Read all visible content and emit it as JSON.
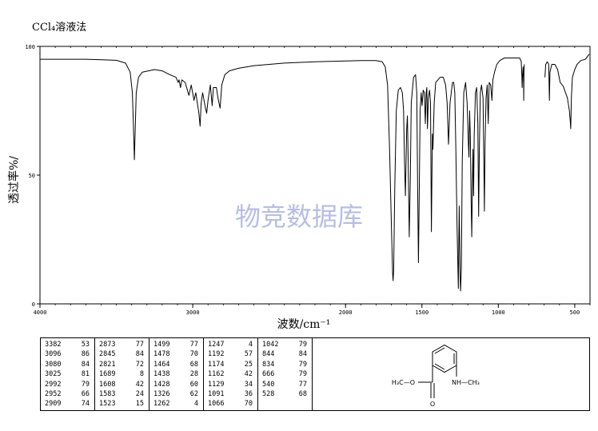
{
  "header": {
    "title": "CCl₄溶液法"
  },
  "watermark": "物竞数据库",
  "chart_data": {
    "type": "line",
    "xlabel": "波数/cm⁻¹",
    "ylabel": "透过率%/",
    "xlim": [
      4000,
      400
    ],
    "ylim": [
      0,
      100
    ],
    "x_ticks": [
      4000,
      3000,
      2000,
      1500,
      1000,
      500
    ],
    "x_tick_labels": [
      "4000",
      "3000",
      "2000",
      "1500",
      "1000",
      "500"
    ],
    "y_ticks": [
      0,
      50,
      100
    ],
    "y_tick_labels": [
      "0",
      "50",
      "100"
    ],
    "grid": false,
    "series": [
      {
        "segments": [
          [
            [
              4000,
              95
            ],
            [
              3700,
              95
            ],
            [
              3500,
              94.6
            ],
            [
              3440,
              93.5
            ],
            [
              3410,
              90
            ],
            [
              3395,
              82
            ],
            [
              3386,
              65
            ],
            [
              3382,
              56
            ],
            [
              3378,
              65
            ],
            [
              3370,
              82
            ],
            [
              3355,
              88
            ],
            [
              3330,
              90
            ],
            [
              3250,
              91
            ],
            [
              3200,
              90.5
            ],
            [
              3150,
              89
            ],
            [
              3110,
              88
            ],
            [
              3096,
              86
            ],
            [
              3090,
              87
            ],
            [
              3080,
              84
            ],
            [
              3072,
              87
            ],
            [
              3050,
              86
            ],
            [
              3025,
              81
            ],
            [
              3010,
              85
            ],
            [
              2995,
              80
            ],
            [
              2992,
              79
            ],
            [
              2980,
              82
            ],
            [
              2960,
              74
            ],
            [
              2952,
              69
            ],
            [
              2945,
              78
            ],
            [
              2935,
              82
            ],
            [
              2920,
              77
            ],
            [
              2909,
              74
            ],
            [
              2900,
              79
            ],
            [
              2885,
              85
            ],
            [
              2873,
              77
            ],
            [
              2865,
              84
            ],
            [
              2845,
              84
            ],
            [
              2835,
              80
            ],
            [
              2821,
              76
            ],
            [
              2810,
              85
            ],
            [
              2790,
              89
            ],
            [
              2760,
              90.5
            ],
            [
              2700,
              91.5
            ],
            [
              2600,
              92.5
            ],
            [
              2400,
              93.5
            ],
            [
              2200,
              94
            ],
            [
              1900,
              94.5
            ],
            [
              1800,
              94.5
            ],
            [
              1760,
              94
            ],
            [
              1740,
              92
            ],
            [
              1725,
              85
            ],
            [
              1712,
              60
            ],
            [
              1700,
              30
            ],
            [
              1692,
              12
            ],
            [
              1689,
              9
            ],
            [
              1685,
              13
            ],
            [
              1678,
              45
            ],
            [
              1668,
              75
            ],
            [
              1655,
              83
            ],
            [
              1640,
              84
            ],
            [
              1628,
              82
            ],
            [
              1620,
              75
            ],
            [
              1614,
              55
            ],
            [
              1608,
              42
            ],
            [
              1600,
              68
            ],
            [
              1595,
              73
            ],
            [
              1590,
              55
            ],
            [
              1583,
              26
            ],
            [
              1576,
              50
            ],
            [
              1570,
              78
            ],
            [
              1555,
              88
            ],
            [
              1542,
              89
            ],
            [
              1534,
              82
            ],
            [
              1528,
              45
            ],
            [
              1523,
              16
            ],
            [
              1518,
              40
            ],
            [
              1512,
              75
            ],
            [
              1505,
              82
            ],
            [
              1499,
              77
            ],
            [
              1492,
              83
            ],
            [
              1484,
              82
            ],
            [
              1478,
              70
            ],
            [
              1472,
              82
            ],
            [
              1468,
              84
            ],
            [
              1464,
              68
            ],
            [
              1458,
              80
            ],
            [
              1450,
              83
            ],
            [
              1444,
              78
            ],
            [
              1438,
              28
            ],
            [
              1432,
              66
            ],
            [
              1428,
              60
            ],
            [
              1420,
              78
            ],
            [
              1410,
              86
            ],
            [
              1380,
              88
            ],
            [
              1360,
              88
            ],
            [
              1345,
              85
            ],
            [
              1335,
              78
            ],
            [
              1326,
              62
            ],
            [
              1316,
              78
            ],
            [
              1300,
              86
            ],
            [
              1292,
              86
            ],
            [
              1285,
              82
            ],
            [
              1278,
              60
            ],
            [
              1270,
              30
            ],
            [
              1262,
              6
            ],
            [
              1256,
              38
            ],
            [
              1250,
              10
            ],
            [
              1247,
              5
            ],
            [
              1242,
              14
            ],
            [
              1236,
              55
            ],
            [
              1226,
              82
            ],
            [
              1214,
              86
            ],
            [
              1204,
              78
            ],
            [
              1196,
              62
            ],
            [
              1192,
              57
            ],
            [
              1188,
              75
            ],
            [
              1183,
              64
            ],
            [
              1178,
              40
            ],
            [
              1174,
              26
            ],
            [
              1170,
              45
            ],
            [
              1166,
              60
            ],
            [
              1162,
              42
            ],
            [
              1158,
              65
            ],
            [
              1150,
              82
            ],
            [
              1142,
              84
            ],
            [
              1134,
              70
            ],
            [
              1129,
              34
            ],
            [
              1124,
              60
            ],
            [
              1118,
              82
            ],
            [
              1110,
              85
            ],
            [
              1100,
              80
            ],
            [
              1094,
              50
            ],
            [
              1091,
              36
            ],
            [
              1087,
              62
            ],
            [
              1080,
              80
            ],
            [
              1073,
              85
            ],
            [
              1066,
              70
            ],
            [
              1060,
              86
            ],
            [
              1050,
              85
            ],
            [
              1042,
              79
            ],
            [
              1036,
              87
            ],
            [
              1025,
              90
            ],
            [
              1010,
              93
            ],
            [
              990,
              94.5
            ],
            [
              960,
              95.5
            ],
            [
              900,
              95.5
            ],
            [
              860,
              95.5
            ],
            [
              850,
              94
            ],
            [
              846,
              88
            ],
            [
              844,
              84
            ],
            [
              842,
              88
            ],
            [
              838,
              92
            ],
            [
              835,
              86
            ],
            [
              834,
              79
            ],
            [
              832,
              90
            ],
            [
              830,
              93
            ]
          ],
          [
            [
              695,
              88
            ],
            [
              690,
              93
            ],
            [
              680,
              94
            ],
            [
              670,
              93
            ],
            [
              666,
              79
            ],
            [
              662,
              90
            ],
            [
              650,
              93
            ],
            [
              630,
              93
            ],
            [
              612,
              91
            ],
            [
              595,
              86
            ],
            [
              575,
              84.5
            ],
            [
              560,
              82
            ],
            [
              548,
              80
            ],
            [
              540,
              77
            ],
            [
              535,
              75
            ],
            [
              529,
              71
            ],
            [
              526,
              68
            ],
            [
              522,
              80
            ],
            [
              515,
              88
            ],
            [
              500,
              91
            ],
            [
              485,
              93
            ],
            [
              460,
              94.5
            ],
            [
              430,
              95
            ],
            [
              405,
              97
            ]
          ]
        ]
      }
    ],
    "peak_table": [
      [
        [
          "3382",
          "53"
        ],
        [
          "3096",
          "86"
        ],
        [
          "3080",
          "84"
        ],
        [
          "3025",
          "81"
        ],
        [
          "2992",
          "79"
        ],
        [
          "2952",
          "66"
        ],
        [
          "2909",
          "74"
        ]
      ],
      [
        [
          "2873",
          "77"
        ],
        [
          "2845",
          "84"
        ],
        [
          "2821",
          "72"
        ],
        [
          "1689",
          "8"
        ],
        [
          "1608",
          "42"
        ],
        [
          "1583",
          "24"
        ],
        [
          "1523",
          "15"
        ]
      ],
      [
        [
          "1499",
          "77"
        ],
        [
          "1478",
          "70"
        ],
        [
          "1464",
          "68"
        ],
        [
          "1438",
          "28"
        ],
        [
          "1428",
          "60"
        ],
        [
          "1326",
          "62"
        ],
        [
          "1262",
          "4"
        ]
      ],
      [
        [
          "1247",
          "4"
        ],
        [
          "1192",
          "57"
        ],
        [
          "1174",
          "25"
        ],
        [
          "1162",
          "42"
        ],
        [
          "1129",
          "34"
        ],
        [
          "1091",
          "36"
        ],
        [
          "1066",
          "70"
        ]
      ],
      [
        [
          "1042",
          "79"
        ],
        [
          "844",
          "84"
        ],
        [
          "834",
          "79"
        ],
        [
          "666",
          "79"
        ],
        [
          "540",
          "77"
        ],
        [
          "528",
          "68"
        ]
      ]
    ]
  },
  "structure": {
    "left_group": "H₃C—O",
    "right_group": "NH—CH₃",
    "carbonyl_oxygen": "O"
  }
}
